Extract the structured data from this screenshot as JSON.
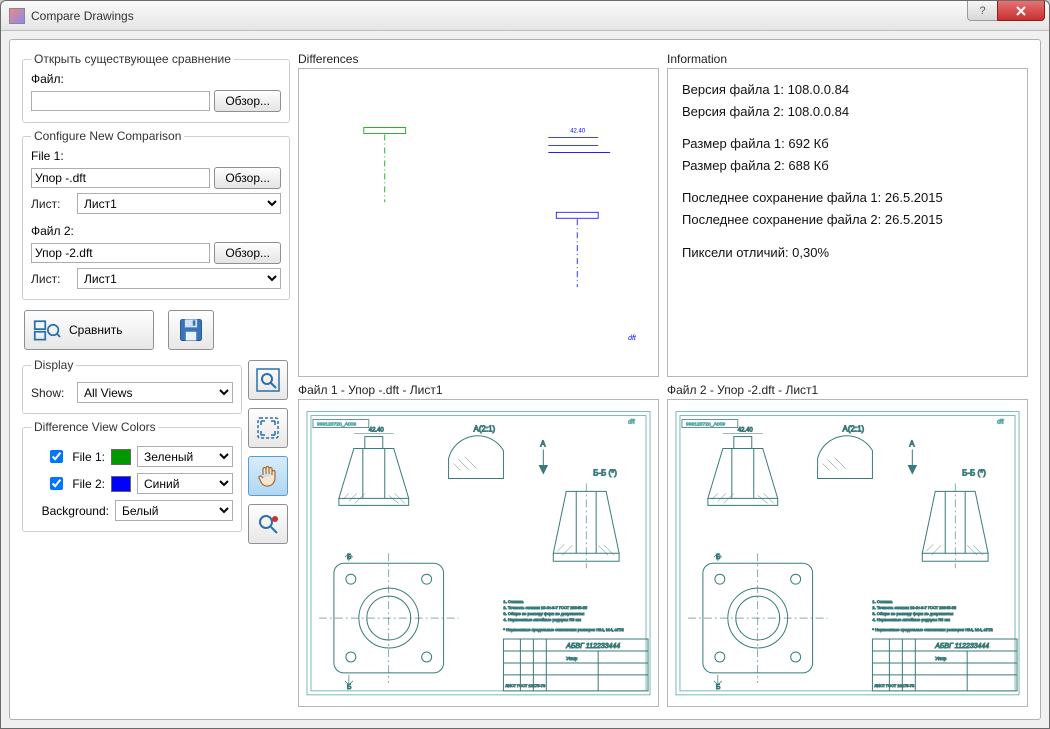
{
  "window": {
    "title": "Compare Drawings"
  },
  "sidebar": {
    "open_existing": {
      "legend": "Открыть существующее сравнение",
      "file_label": "Файл:",
      "file_value": "",
      "browse": "Обзор..."
    },
    "configure": {
      "legend": "Configure New Comparison",
      "file1_label": "File 1:",
      "file1_value": "Упор -.dft",
      "file1_browse": "Обзор...",
      "sheet1_label": "Лист:",
      "sheet1_value": "Лист1",
      "file2_label": "Файл 2:",
      "file2_value": "Упор -2.dft",
      "file2_browse": "Обзор...",
      "sheet2_label": "Лист:",
      "sheet2_value": "Лист1"
    },
    "compare_btn": "Сравнить",
    "display": {
      "legend": "Display",
      "show_label": "Show:",
      "show_value": "All Views"
    },
    "colors": {
      "legend": "Difference View Colors",
      "file1_label": "File 1:",
      "file1_color": "#009a00",
      "file1_color_name": "Зеленый",
      "file2_label": "File 2:",
      "file2_color": "#0000ff",
      "file2_color_name": "Синий",
      "bg_label": "Background:",
      "bg_name": "Белый"
    }
  },
  "views": {
    "diff_title": "Differences",
    "info_title": "Information",
    "file1_title": "Файл 1 - Упор -.dft - Лист1",
    "file2_title": "Файл 2 - Упор -2.dft - Лист1",
    "info": {
      "v1": "Версия файла 1: 108.0.0.84",
      "v2": "Версия файла 2: 108.0.0.84",
      "s1": "Размер файла 1: 692 Кб",
      "s2": "Размер файла 2: 688 Кб",
      "d1": "Последнее сохранение файла 1: 26.5.2015",
      "d2": "Последнее сохранение файла 2: 26.5.2015",
      "px": "Пиксели отличий: 0,30%"
    },
    "drawing": {
      "frame_color": "#5aa8a8",
      "line_color": "#3a7a7a",
      "text_color": "#3a7a7a",
      "title_block_text": "АБВГ 112233444",
      "label_A": "А(2:1)",
      "label_BB": "Б-Б (*)",
      "label_B": "Б",
      "label_A_arrow": "А",
      "dim_40": "42.40"
    },
    "diff_colors": {
      "green": "#009a00",
      "blue": "#0000ff"
    }
  }
}
